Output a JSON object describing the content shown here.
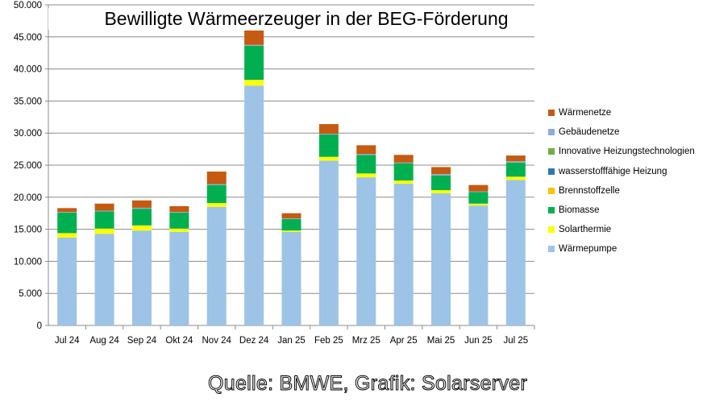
{
  "chart_data": {
    "type": "bar",
    "stacked": true,
    "title": "Bewilligte Wärmeerzeuger in der BEG-Förderung",
    "xlabel": "",
    "ylabel": "",
    "ylim": [
      0,
      50000
    ],
    "yticks": [
      "0",
      "5.000",
      "10.000",
      "15.000",
      "20.000",
      "25.000",
      "30.000",
      "35.000",
      "40.000",
      "45.000",
      "50.000"
    ],
    "grid": true,
    "legend_position": "right",
    "categories": [
      "Jul 24",
      "Aug 24",
      "Sep 24",
      "Okt 24",
      "Nov 24",
      "Dez 24",
      "Jan 25",
      "Feb 25",
      "Mrz 25",
      "Apr 25",
      "Mai 25",
      "Jun 25",
      "Jul 25"
    ],
    "series": [
      {
        "name": "Wärmepumpe",
        "color": "#9DC3E6",
        "values": [
          13700,
          14300,
          14800,
          14600,
          18500,
          37400,
          14600,
          25700,
          23100,
          22100,
          20600,
          18700,
          22700
        ]
      },
      {
        "name": "Solarthermie",
        "color": "#FFFF00",
        "values": [
          700,
          800,
          800,
          500,
          600,
          900,
          200,
          600,
          600,
          500,
          500,
          300,
          500
        ]
      },
      {
        "name": "Biomasse",
        "color": "#00B050",
        "values": [
          3200,
          2700,
          2600,
          2500,
          2800,
          5300,
          1800,
          3500,
          2900,
          2700,
          2300,
          1800,
          2200
        ]
      },
      {
        "name": "Brennstoffzelle",
        "color": "#FFC000",
        "values": [
          0,
          0,
          0,
          0,
          0,
          0,
          0,
          0,
          0,
          0,
          0,
          0,
          0
        ]
      },
      {
        "name": "wasserstofffähige Heizung",
        "color": "#2E75B6",
        "values": [
          0,
          0,
          0,
          0,
          0,
          0,
          0,
          0,
          0,
          0,
          0,
          0,
          0
        ]
      },
      {
        "name": "Innovative Heizungstechnologien",
        "color": "#70AD47",
        "values": [
          0,
          0,
          0,
          0,
          0,
          0,
          0,
          0,
          0,
          0,
          0,
          0,
          0
        ]
      },
      {
        "name": "Gebäudenetze",
        "color": "#8FAADC",
        "values": [
          100,
          100,
          150,
          100,
          150,
          150,
          100,
          100,
          150,
          100,
          200,
          100,
          200
        ]
      },
      {
        "name": "Wärmenetze",
        "color": "#C55A11",
        "values": [
          600,
          1100,
          1150,
          900,
          1950,
          2250,
          800,
          1500,
          1350,
          1200,
          1100,
          1000,
          900
        ]
      }
    ],
    "source": "Quelle: BMWE, Grafik: Solarserver"
  }
}
